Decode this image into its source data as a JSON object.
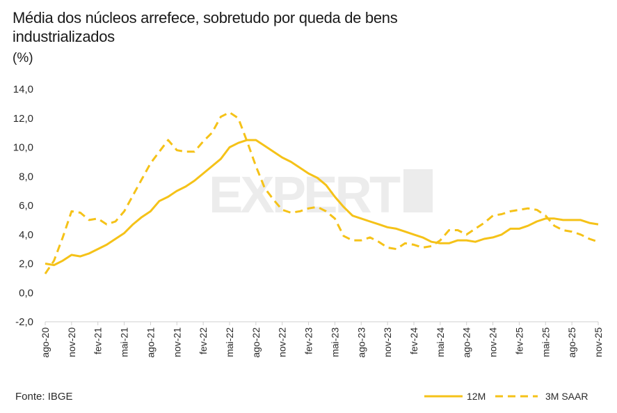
{
  "header": {
    "title": "Média dos núcleos arrefece, sobretudo por queda de bens industrializados",
    "unit": "(%)"
  },
  "footer": {
    "source": "Fonte: IBGE"
  },
  "watermark": {
    "text": "EXPERT XP"
  },
  "colors": {
    "series": "#F5C218",
    "axis": "#d0d0d0",
    "text": "#2a2a2a"
  },
  "chart_data": {
    "type": "line",
    "title": "Média dos núcleos arrefece, sobretudo por queda de bens industrializados",
    "ylabel": "(%)",
    "xlabel": "",
    "ylim": [
      -2,
      14
    ],
    "yticks": [
      "-2,0",
      "0,0",
      "2,0",
      "4,0",
      "6,0",
      "8,0",
      "10,0",
      "12,0",
      "14,0"
    ],
    "x": [
      "ago-20",
      "set-20",
      "out-20",
      "nov-20",
      "dez-20",
      "jan-21",
      "fev-21",
      "mar-21",
      "abr-21",
      "mai-21",
      "jun-21",
      "jul-21",
      "ago-21",
      "set-21",
      "out-21",
      "nov-21",
      "dez-21",
      "jan-22",
      "fev-22",
      "mar-22",
      "abr-22",
      "mai-22",
      "jun-22",
      "jul-22",
      "ago-22",
      "set-22",
      "out-22",
      "nov-22",
      "dez-22",
      "jan-23",
      "fev-23",
      "mar-23",
      "abr-23",
      "mai-23",
      "jun-23",
      "jul-23",
      "ago-23",
      "set-23",
      "out-23",
      "nov-23",
      "dez-23",
      "jan-24",
      "fev-24",
      "mar-24",
      "abr-24",
      "mai-24",
      "jun-24",
      "jul-24",
      "ago-24",
      "set-24",
      "out-24",
      "nov-24",
      "dez-24",
      "jan-25",
      "fev-25",
      "mar-25",
      "abr-25",
      "mai-25",
      "jun-25",
      "jul-25",
      "ago-25",
      "set-25",
      "out-25",
      "nov-25"
    ],
    "xtick_labels": [
      "ago-20",
      "nov-20",
      "fev-21",
      "mai-21",
      "ago-21",
      "nov-21",
      "fev-22",
      "mai-22",
      "ago-22",
      "nov-22",
      "fev-23",
      "mai-23",
      "ago-23",
      "nov-23",
      "fev-24",
      "mai-24",
      "ago-24",
      "nov-24",
      "fev-25",
      "mai-25",
      "ago-25",
      "nov-25"
    ],
    "series": [
      {
        "name": "12M",
        "style": "solid",
        "values": [
          2.0,
          1.9,
          2.2,
          2.6,
          2.5,
          2.7,
          3.0,
          3.3,
          3.7,
          4.1,
          4.7,
          5.2,
          5.6,
          6.3,
          6.6,
          7.0,
          7.3,
          7.7,
          8.2,
          8.7,
          9.2,
          10.0,
          10.3,
          10.5,
          10.5,
          10.1,
          9.7,
          9.3,
          9.0,
          8.6,
          8.2,
          7.9,
          7.4,
          6.6,
          5.9,
          5.3,
          5.1,
          4.9,
          4.7,
          4.5,
          4.4,
          4.2,
          4.0,
          3.8,
          3.5,
          3.4,
          3.4,
          3.6,
          3.6,
          3.5,
          3.7,
          3.8,
          4.0,
          4.4,
          4.4,
          4.6,
          4.9,
          5.1,
          5.1,
          5.0,
          5.0,
          5.0,
          4.8,
          4.7
        ]
      },
      {
        "name": "3M SAAR",
        "style": "dashed",
        "values": [
          1.3,
          2.2,
          3.8,
          5.6,
          5.5,
          5.0,
          5.1,
          4.7,
          4.9,
          5.6,
          6.7,
          7.8,
          8.9,
          9.7,
          10.5,
          9.8,
          9.7,
          9.7,
          10.4,
          11.0,
          12.1,
          12.4,
          12.0,
          10.4,
          8.7,
          7.2,
          6.4,
          5.7,
          5.5,
          5.6,
          5.8,
          5.9,
          5.6,
          5.1,
          3.9,
          3.6,
          3.6,
          3.8,
          3.5,
          3.1,
          3.0,
          3.4,
          3.3,
          3.1,
          3.2,
          3.6,
          4.3,
          4.3,
          4.0,
          4.4,
          4.8,
          5.3,
          5.4,
          5.6,
          5.7,
          5.8,
          5.7,
          5.3,
          4.6,
          4.3,
          4.2,
          4.0,
          3.7,
          3.5
        ]
      }
    ],
    "legend": [
      "12M",
      "3M SAAR"
    ],
    "legend_position": "bottom-right",
    "grid": false
  }
}
